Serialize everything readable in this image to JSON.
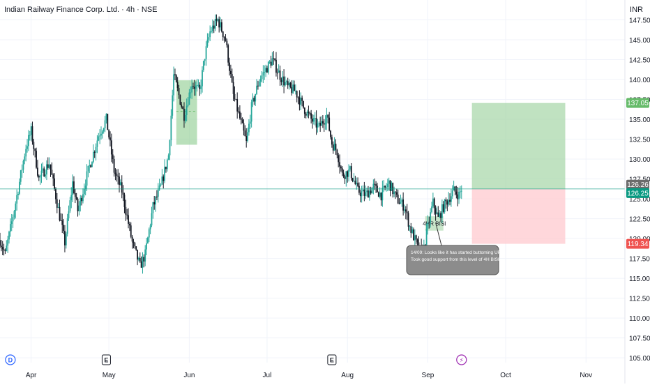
{
  "chart_data": {
    "type": "candlestick",
    "title": "Indian Railway Finance Corp. Ltd. · 4h · NSE",
    "currency": "INR",
    "ylim": [
      104.4,
      150
    ],
    "y_ticks": [
      105,
      107.5,
      110,
      112.5,
      115,
      117.5,
      120,
      122.5,
      125,
      127.5,
      130,
      132.5,
      135,
      137.5,
      140,
      142.5,
      145,
      147.5
    ],
    "y_tick_labels": [
      "105.00",
      "107.50",
      "110.00",
      "112.50",
      "115.00",
      "117.50",
      "120.00",
      "122.50",
      "125.00",
      "127.50",
      "130.00",
      "132.50",
      "135.00",
      "137.50",
      "140.00",
      "142.50",
      "145.00",
      "147.50"
    ],
    "x_range": [
      "2024-03-20",
      "2024-11-16"
    ],
    "x_ticks": [
      {
        "date": "2024-04-01",
        "label": "Apr"
      },
      {
        "date": "2024-05-01",
        "label": "May"
      },
      {
        "date": "2024-06-01",
        "label": "Jun"
      },
      {
        "date": "2024-07-01",
        "label": "Jul"
      },
      {
        "date": "2024-08-01",
        "label": "Aug"
      },
      {
        "date": "2024-09-01",
        "label": "Sep"
      },
      {
        "date": "2024-10-01",
        "label": "Oct"
      },
      {
        "date": "2024-11-01",
        "label": "Nov"
      }
    ],
    "price_path": [
      {
        "date": "2024-03-20",
        "price": 119.8
      },
      {
        "date": "2024-03-22",
        "price": 118.0
      },
      {
        "date": "2024-03-26",
        "price": 124.5
      },
      {
        "date": "2024-03-30",
        "price": 131.5
      },
      {
        "date": "2024-04-01",
        "price": 133.5
      },
      {
        "date": "2024-04-04",
        "price": 127.5
      },
      {
        "date": "2024-04-08",
        "price": 129.5
      },
      {
        "date": "2024-04-11",
        "price": 124.5
      },
      {
        "date": "2024-04-14",
        "price": 119.5
      },
      {
        "date": "2024-04-17",
        "price": 127.0
      },
      {
        "date": "2024-04-19",
        "price": 123.5
      },
      {
        "date": "2024-04-23",
        "price": 128.5
      },
      {
        "date": "2024-04-27",
        "price": 133.0
      },
      {
        "date": "2024-04-30",
        "price": 135.0
      },
      {
        "date": "2024-05-03",
        "price": 128.5
      },
      {
        "date": "2024-05-06",
        "price": 126.0
      },
      {
        "date": "2024-05-10",
        "price": 119.5
      },
      {
        "date": "2024-05-13",
        "price": 116.5
      },
      {
        "date": "2024-05-15",
        "price": 118.0
      },
      {
        "date": "2024-05-18",
        "price": 124.0
      },
      {
        "date": "2024-05-21",
        "price": 126.5
      },
      {
        "date": "2024-05-24",
        "price": 130.5
      },
      {
        "date": "2024-05-26",
        "price": 140.5
      },
      {
        "date": "2024-05-28",
        "price": 138.0
      },
      {
        "date": "2024-05-30",
        "price": 135.5
      },
      {
        "date": "2024-06-02",
        "price": 139.5
      },
      {
        "date": "2024-06-05",
        "price": 138.5
      },
      {
        "date": "2024-06-07",
        "price": 143.0
      },
      {
        "date": "2024-06-09",
        "price": 146.0
      },
      {
        "date": "2024-06-12",
        "price": 147.5
      },
      {
        "date": "2024-06-15",
        "price": 145.0
      },
      {
        "date": "2024-06-18",
        "price": 138.0
      },
      {
        "date": "2024-06-21",
        "price": 134.5
      },
      {
        "date": "2024-06-23",
        "price": 132.0
      },
      {
        "date": "2024-06-25",
        "price": 136.5
      },
      {
        "date": "2024-06-28",
        "price": 140.0
      },
      {
        "date": "2024-07-01",
        "price": 141.5
      },
      {
        "date": "2024-07-03",
        "price": 142.5
      },
      {
        "date": "2024-07-06",
        "price": 140.5
      },
      {
        "date": "2024-07-09",
        "price": 139.0
      },
      {
        "date": "2024-07-12",
        "price": 138.5
      },
      {
        "date": "2024-07-15",
        "price": 136.5
      },
      {
        "date": "2024-07-18",
        "price": 135.0
      },
      {
        "date": "2024-07-21",
        "price": 134.0
      },
      {
        "date": "2024-07-24",
        "price": 135.5
      },
      {
        "date": "2024-07-26",
        "price": 132.0
      },
      {
        "date": "2024-07-28",
        "price": 131.0
      },
      {
        "date": "2024-07-30",
        "price": 128.0
      },
      {
        "date": "2024-08-02",
        "price": 128.5
      },
      {
        "date": "2024-08-05",
        "price": 126.0
      },
      {
        "date": "2024-08-08",
        "price": 125.5
      },
      {
        "date": "2024-08-11",
        "price": 126.5
      },
      {
        "date": "2024-08-14",
        "price": 125.5
      },
      {
        "date": "2024-08-17",
        "price": 127.0
      },
      {
        "date": "2024-08-20",
        "price": 125.0
      },
      {
        "date": "2024-08-23",
        "price": 124.0
      },
      {
        "date": "2024-08-25",
        "price": 121.5
      },
      {
        "date": "2024-08-28",
        "price": 119.0
      },
      {
        "date": "2024-08-30",
        "price": 118.0
      },
      {
        "date": "2024-09-01",
        "price": 121.5
      },
      {
        "date": "2024-09-03",
        "price": 124.5
      },
      {
        "date": "2024-09-05",
        "price": 122.5
      },
      {
        "date": "2024-09-07",
        "price": 124.0
      },
      {
        "date": "2024-09-09",
        "price": 125.0
      },
      {
        "date": "2024-09-11",
        "price": 126.0
      },
      {
        "date": "2024-09-13",
        "price": 125.5
      },
      {
        "date": "2024-09-14",
        "price": 126.25
      }
    ],
    "boxes": [
      {
        "name": "supply-zone",
        "x0": "2024-05-27",
        "x1": "2024-06-04",
        "y0": 131.8,
        "y1": 139.9,
        "fill": "#81c784",
        "opacity": 0.55,
        "midline": 136.0
      },
      {
        "name": "bisi-zone",
        "x0": "2024-08-31",
        "x1": "2024-09-07",
        "y0": 121.0,
        "y1": 122.8,
        "fill": "#a5d6a7",
        "opacity": 0.6,
        "label": "4HR BISI"
      },
      {
        "name": "target-zone",
        "x0": "2024-09-18",
        "x1": "2024-10-24",
        "y0": 126.25,
        "y1": 137.05,
        "fill": "#a5d6a7",
        "opacity": 0.7
      },
      {
        "name": "stop-zone",
        "x0": "2024-09-18",
        "x1": "2024-10-24",
        "y0": 119.34,
        "y1": 126.25,
        "fill": "#ffcdd2",
        "opacity": 0.8
      }
    ],
    "price_labels": [
      {
        "name": "target-price-label",
        "value": 137.05,
        "text": "137.05",
        "bg": "#66bb6a",
        "color": "#ffffff"
      },
      {
        "name": "high-price-label",
        "value": 126.26,
        "text": "126.26",
        "bg": "#6b6b6b",
        "color": "#ffffff"
      },
      {
        "name": "last-price-label",
        "value": 126.25,
        "text": "126.25",
        "bg": "#089981",
        "color": "#ffffff"
      },
      {
        "name": "stop-price-label",
        "value": 119.34,
        "text": "119.34",
        "bg": "#ef5350",
        "color": "#ffffff"
      }
    ],
    "last_price": 126.25,
    "annotation": {
      "lines": [
        "14/09: Looks like it has started buttoming UP",
        "Took good support from this level of 4H BISI"
      ],
      "anchor_date": "2024-09-04",
      "anchor_price": 122.0
    },
    "events": [
      {
        "date": "2024-03-24",
        "label": "D",
        "kind": "dividend",
        "color": "#2962ff"
      },
      {
        "date": "2024-04-30",
        "label": "E",
        "kind": "earnings",
        "color": "#131722"
      },
      {
        "date": "2024-07-26",
        "label": "E",
        "kind": "earnings",
        "color": "#131722"
      },
      {
        "date": "2024-09-14",
        "label": "⚡",
        "kind": "flash",
        "color": "#9c27b0"
      }
    ],
    "colors": {
      "up": "#26a69a",
      "down": "#131722",
      "grid": "#f0f3fa",
      "last_line": "#089981"
    }
  }
}
